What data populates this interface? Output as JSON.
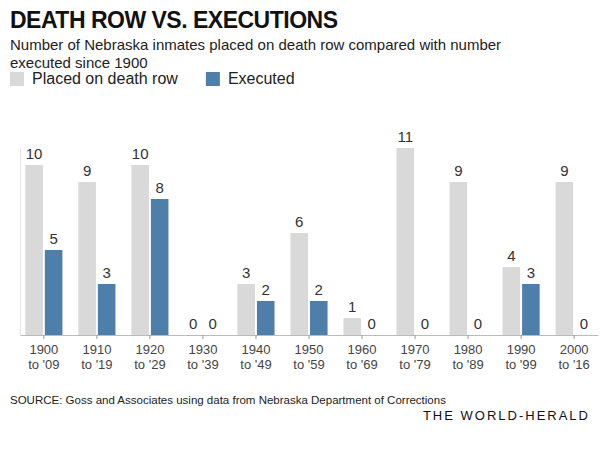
{
  "chart_data": {
    "type": "bar",
    "title": "DEATH ROW VS. EXECUTIONS",
    "subtitle": "Number of Nebraska inmates placed on death row compared with number executed since 1900",
    "categories": [
      "1900 to '09",
      "1910 to '19",
      "1920 to '29",
      "1930 to '39",
      "1940 to '49",
      "1950 to '59",
      "1960 to '69",
      "1970 to '79",
      "1980 to '89",
      "1990 to '99",
      "2000 to '16"
    ],
    "series": [
      {
        "name": "Placed on death row",
        "color": "#d9d9d9",
        "values": [
          10,
          9,
          10,
          0,
          3,
          6,
          1,
          11,
          9,
          4,
          9
        ]
      },
      {
        "name": "Executed",
        "color": "#4e7fab",
        "values": [
          5,
          3,
          8,
          0,
          2,
          2,
          0,
          0,
          0,
          3,
          0
        ]
      }
    ],
    "ylim": [
      0,
      11
    ],
    "legend": "top-left",
    "data_labels": true,
    "grid": false,
    "tick_labels": "x",
    "source": "SOURCE: Goss and Associates using data from Nebraska Department of Corrections",
    "credit": "THE WORLD-HERALD"
  }
}
